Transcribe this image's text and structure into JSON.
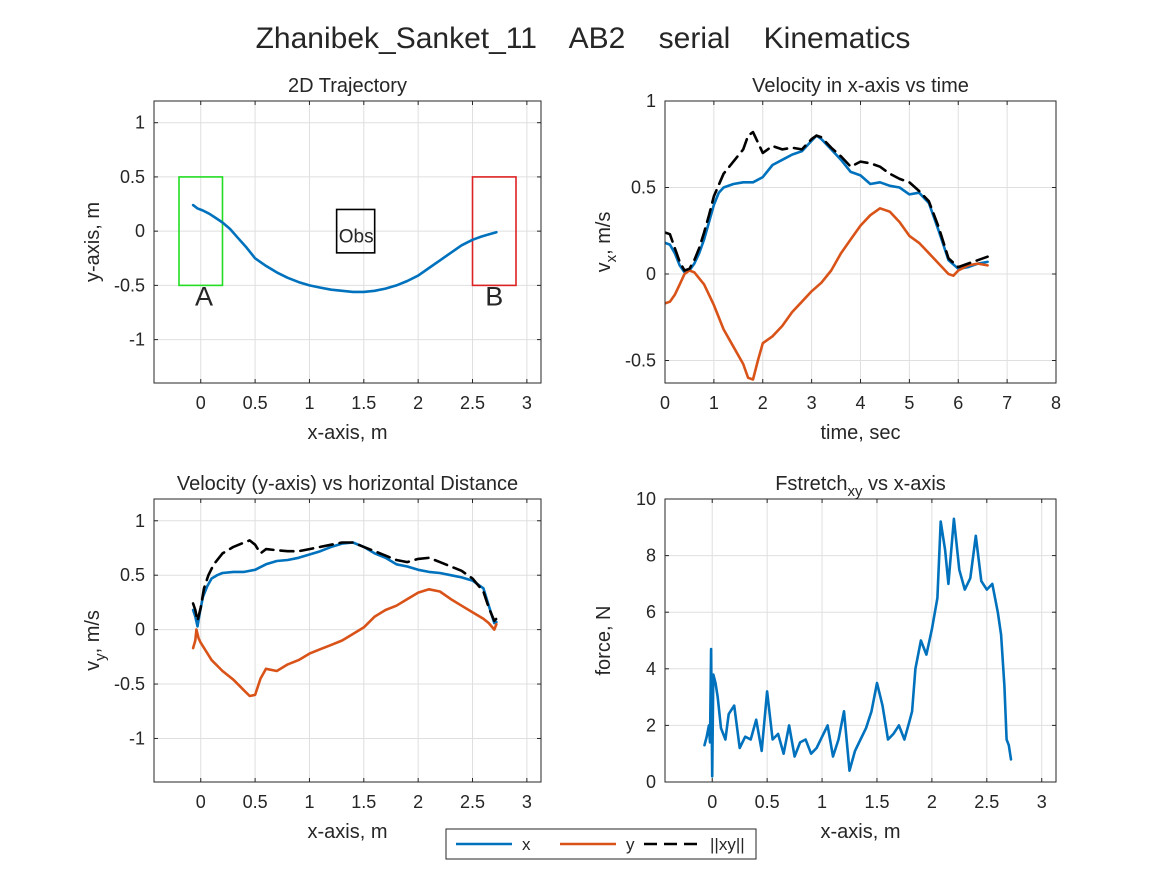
{
  "figure": {
    "title": "Zhanibek_Sanket_11    AB2    serial    Kinematics"
  },
  "colors": {
    "x": "#0072BD",
    "y": "#D95319",
    "xy": "#000000",
    "start_box": "#22dd22",
    "end_box": "#dd2222",
    "obstacle": "#000000"
  },
  "legend": {
    "placement": "bottom-center",
    "items": [
      {
        "label": "x",
        "color": "#0072BD",
        "dash": "solid"
      },
      {
        "label": "y",
        "color": "#D95319",
        "dash": "solid"
      },
      {
        "label": "||xy||",
        "color": "#000000",
        "dash": "dashed"
      }
    ]
  },
  "chart_data": [
    {
      "id": "traj",
      "type": "line",
      "title": "2D Trajectory",
      "xlabel": "x-axis, m",
      "ylabel": "y-axis, m",
      "xlim": [
        -0.43,
        3.13
      ],
      "ylim": [
        -1.4,
        1.2
      ],
      "xticks": [
        0,
        0.5,
        1,
        1.5,
        2,
        2.5,
        3
      ],
      "xtick_labels": [
        "0",
        "0.5",
        "1",
        "1.5",
        "2",
        "2.5",
        "3"
      ],
      "yticks": [
        -1,
        -0.5,
        0,
        0.5,
        1
      ],
      "ytick_labels": [
        "-1",
        "-0.5",
        "0",
        "0.5",
        "1"
      ],
      "grid": true,
      "series": [
        {
          "key": "x",
          "x": [
            -0.07,
            -0.03,
            0.02,
            0.08,
            0.14,
            0.2,
            0.27,
            0.34,
            0.42,
            0.5,
            0.6,
            0.7,
            0.8,
            0.9,
            1.0,
            1.1,
            1.2,
            1.3,
            1.4,
            1.5,
            1.6,
            1.7,
            1.8,
            1.9,
            2.0,
            2.1,
            2.2,
            2.3,
            2.4,
            2.5,
            2.58,
            2.65,
            2.72
          ],
          "y": [
            0.24,
            0.21,
            0.19,
            0.16,
            0.12,
            0.08,
            0.02,
            -0.06,
            -0.15,
            -0.25,
            -0.32,
            -0.38,
            -0.43,
            -0.47,
            -0.5,
            -0.52,
            -0.54,
            -0.55,
            -0.56,
            -0.56,
            -0.55,
            -0.53,
            -0.5,
            -0.46,
            -0.41,
            -0.34,
            -0.27,
            -0.2,
            -0.13,
            -0.08,
            -0.05,
            -0.03,
            -0.01
          ]
        }
      ],
      "rects": [
        {
          "label": "A",
          "x0": -0.2,
          "x1": 0.2,
          "y0": -0.5,
          "y1": 0.5,
          "color": "#22dd22",
          "label_x": 0.03,
          "label_y": -0.62
        },
        {
          "label": "Obs",
          "x0": 1.25,
          "x1": 1.6,
          "y0": -0.2,
          "y1": 0.2,
          "color": "#000000",
          "label_x": 1.43,
          "label_y": -0.06
        },
        {
          "label": "B",
          "x0": 2.5,
          "x1": 2.9,
          "y0": -0.5,
          "y1": 0.5,
          "color": "#dd2222",
          "label_x": 2.7,
          "label_y": -0.62
        }
      ]
    },
    {
      "id": "vx",
      "type": "line",
      "title": "Velocity in x-axis vs time",
      "xlabel": "time, sec",
      "ylabel_main": "v",
      "ylabel_sub": "x",
      "ylabel_rest": ", m/s",
      "xlim": [
        0,
        8
      ],
      "ylim": [
        -0.63,
        1
      ],
      "xticks": [
        0,
        1,
        2,
        3,
        4,
        5,
        6,
        7,
        8
      ],
      "xtick_labels": [
        "0",
        "1",
        "2",
        "3",
        "4",
        "5",
        "6",
        "7",
        "8"
      ],
      "yticks": [
        -0.5,
        0,
        0.5,
        1
      ],
      "ytick_labels": [
        "-0.5",
        "0",
        "0.5",
        "1"
      ],
      "grid": true,
      "series": [
        {
          "key": "x",
          "x": [
            0,
            0.1,
            0.2,
            0.3,
            0.4,
            0.5,
            0.6,
            0.7,
            0.8,
            0.9,
            1.0,
            1.1,
            1.2,
            1.4,
            1.6,
            1.8,
            2.0,
            2.2,
            2.4,
            2.6,
            2.8,
            3.0,
            3.1,
            3.2,
            3.4,
            3.6,
            3.8,
            4.0,
            4.2,
            4.4,
            4.6,
            4.8,
            5.0,
            5.2,
            5.4,
            5.6,
            5.8,
            6.0,
            6.2,
            6.4,
            6.6
          ],
          "y": [
            0.18,
            0.17,
            0.12,
            0.05,
            0.01,
            0.02,
            0.06,
            0.12,
            0.2,
            0.3,
            0.4,
            0.47,
            0.5,
            0.52,
            0.53,
            0.53,
            0.56,
            0.63,
            0.66,
            0.69,
            0.71,
            0.77,
            0.8,
            0.78,
            0.72,
            0.66,
            0.59,
            0.57,
            0.52,
            0.53,
            0.51,
            0.5,
            0.46,
            0.47,
            0.41,
            0.25,
            0.08,
            0.03,
            0.04,
            0.06,
            0.07
          ]
        },
        {
          "key": "y",
          "x": [
            0,
            0.1,
            0.2,
            0.3,
            0.4,
            0.5,
            0.6,
            0.8,
            1.0,
            1.2,
            1.4,
            1.6,
            1.7,
            1.8,
            1.9,
            2.0,
            2.2,
            2.4,
            2.6,
            2.8,
            3.0,
            3.2,
            3.4,
            3.6,
            3.8,
            4.0,
            4.2,
            4.4,
            4.6,
            4.8,
            5.0,
            5.2,
            5.4,
            5.6,
            5.8,
            5.9,
            6.0,
            6.2,
            6.4,
            6.6
          ],
          "y": [
            -0.17,
            -0.16,
            -0.12,
            -0.06,
            0.0,
            0.02,
            0.01,
            -0.06,
            -0.18,
            -0.32,
            -0.42,
            -0.52,
            -0.6,
            -0.61,
            -0.5,
            -0.4,
            -0.36,
            -0.3,
            -0.22,
            -0.16,
            -0.1,
            -0.05,
            0.02,
            0.12,
            0.2,
            0.28,
            0.34,
            0.38,
            0.36,
            0.3,
            0.22,
            0.18,
            0.12,
            0.06,
            0.0,
            -0.01,
            0.02,
            0.05,
            0.06,
            0.05
          ]
        },
        {
          "key": "xy",
          "x": [
            0,
            0.1,
            0.2,
            0.3,
            0.4,
            0.5,
            0.6,
            0.7,
            0.8,
            0.9,
            1.0,
            1.2,
            1.4,
            1.6,
            1.7,
            1.8,
            1.9,
            2.0,
            2.2,
            2.4,
            2.6,
            2.8,
            3.0,
            3.1,
            3.2,
            3.4,
            3.6,
            3.8,
            4.0,
            4.2,
            4.4,
            4.6,
            4.8,
            5.0,
            5.2,
            5.4,
            5.6,
            5.8,
            6.0,
            6.2,
            6.4,
            6.6
          ],
          "y": [
            0.24,
            0.23,
            0.15,
            0.07,
            0.02,
            0.03,
            0.08,
            0.15,
            0.24,
            0.34,
            0.45,
            0.58,
            0.65,
            0.72,
            0.8,
            0.82,
            0.76,
            0.7,
            0.74,
            0.72,
            0.73,
            0.72,
            0.78,
            0.8,
            0.79,
            0.73,
            0.68,
            0.62,
            0.65,
            0.64,
            0.62,
            0.58,
            0.55,
            0.53,
            0.48,
            0.42,
            0.27,
            0.09,
            0.04,
            0.06,
            0.08,
            0.1
          ]
        }
      ]
    },
    {
      "id": "vy",
      "type": "line",
      "title": "Velocity (y-axis) vs horizontal Distance",
      "xlabel": "x-axis, m",
      "ylabel_main": "v",
      "ylabel_sub": "y",
      "ylabel_rest": ", m/s",
      "xlim": [
        -0.43,
        3.13
      ],
      "ylim": [
        -1.4,
        1.2
      ],
      "xticks": [
        0,
        0.5,
        1,
        1.5,
        2,
        2.5,
        3
      ],
      "xtick_labels": [
        "0",
        "0.5",
        "1",
        "1.5",
        "2",
        "2.5",
        "3"
      ],
      "yticks": [
        -1,
        -0.5,
        0,
        0.5,
        1
      ],
      "ytick_labels": [
        "-1",
        "-0.5",
        "0",
        "0.5",
        "1"
      ],
      "grid": true,
      "series": [
        {
          "key": "x",
          "x": [
            -0.07,
            -0.05,
            -0.03,
            -0.01,
            0.02,
            0.06,
            0.1,
            0.15,
            0.2,
            0.3,
            0.4,
            0.5,
            0.6,
            0.7,
            0.8,
            0.9,
            1.0,
            1.1,
            1.2,
            1.3,
            1.4,
            1.5,
            1.6,
            1.7,
            1.8,
            1.9,
            2.0,
            2.1,
            2.2,
            2.3,
            2.4,
            2.5,
            2.6,
            2.65,
            2.7,
            2.72
          ],
          "y": [
            0.18,
            0.12,
            0.03,
            0.15,
            0.3,
            0.4,
            0.47,
            0.5,
            0.52,
            0.53,
            0.53,
            0.55,
            0.6,
            0.63,
            0.64,
            0.66,
            0.69,
            0.72,
            0.76,
            0.79,
            0.8,
            0.76,
            0.7,
            0.66,
            0.6,
            0.58,
            0.55,
            0.53,
            0.52,
            0.5,
            0.48,
            0.45,
            0.38,
            0.22,
            0.06,
            0.07
          ]
        },
        {
          "key": "y",
          "x": [
            -0.07,
            -0.05,
            -0.04,
            -0.02,
            0.0,
            0.05,
            0.1,
            0.2,
            0.3,
            0.4,
            0.45,
            0.5,
            0.55,
            0.6,
            0.7,
            0.8,
            0.9,
            1.0,
            1.1,
            1.2,
            1.3,
            1.4,
            1.5,
            1.6,
            1.7,
            1.8,
            1.9,
            2.0,
            2.1,
            2.2,
            2.3,
            2.4,
            2.5,
            2.6,
            2.65,
            2.7,
            2.72
          ],
          "y": [
            -0.17,
            -0.1,
            0.0,
            -0.08,
            -0.12,
            -0.2,
            -0.28,
            -0.38,
            -0.46,
            -0.56,
            -0.61,
            -0.6,
            -0.45,
            -0.36,
            -0.38,
            -0.32,
            -0.28,
            -0.22,
            -0.18,
            -0.14,
            -0.1,
            -0.04,
            0.02,
            0.12,
            0.18,
            0.22,
            0.28,
            0.34,
            0.37,
            0.35,
            0.28,
            0.22,
            0.16,
            0.1,
            0.06,
            0.0,
            0.05
          ]
        },
        {
          "key": "xy",
          "x": [
            -0.07,
            -0.05,
            -0.03,
            0.0,
            0.03,
            0.07,
            0.12,
            0.2,
            0.3,
            0.4,
            0.45,
            0.5,
            0.55,
            0.6,
            0.7,
            0.8,
            0.9,
            1.0,
            1.1,
            1.2,
            1.3,
            1.4,
            1.5,
            1.6,
            1.7,
            1.8,
            1.9,
            2.0,
            2.1,
            2.2,
            2.3,
            2.4,
            2.5,
            2.6,
            2.65,
            2.7,
            2.72
          ],
          "y": [
            0.24,
            0.18,
            0.08,
            0.2,
            0.38,
            0.5,
            0.6,
            0.7,
            0.76,
            0.8,
            0.82,
            0.78,
            0.7,
            0.74,
            0.73,
            0.72,
            0.72,
            0.74,
            0.76,
            0.78,
            0.8,
            0.8,
            0.76,
            0.72,
            0.68,
            0.64,
            0.62,
            0.65,
            0.66,
            0.62,
            0.58,
            0.54,
            0.47,
            0.35,
            0.2,
            0.08,
            0.1
          ]
        }
      ]
    },
    {
      "id": "force",
      "type": "line",
      "title_main": "Fstretch",
      "title_sub": "xy",
      "title_rest": " vs x-axis",
      "xlabel": "x-axis, m",
      "ylabel": "force, N",
      "xlim": [
        -0.43,
        3.13
      ],
      "ylim": [
        0,
        10
      ],
      "xticks": [
        0,
        0.5,
        1,
        1.5,
        2,
        2.5,
        3
      ],
      "xtick_labels": [
        "0",
        "0.5",
        "1",
        "1.5",
        "2",
        "2.5",
        "3"
      ],
      "yticks": [
        0,
        2,
        4,
        6,
        8,
        10
      ],
      "ytick_labels": [
        "0",
        "2",
        "4",
        "6",
        "8",
        "10"
      ],
      "grid": true,
      "series": [
        {
          "key": "x",
          "x": [
            -0.07,
            -0.05,
            -0.03,
            -0.02,
            -0.01,
            0.0,
            0.01,
            0.03,
            0.05,
            0.08,
            0.12,
            0.15,
            0.2,
            0.25,
            0.3,
            0.35,
            0.4,
            0.45,
            0.5,
            0.55,
            0.6,
            0.65,
            0.7,
            0.75,
            0.8,
            0.85,
            0.9,
            0.95,
            1.0,
            1.05,
            1.1,
            1.15,
            1.2,
            1.25,
            1.3,
            1.35,
            1.4,
            1.45,
            1.5,
            1.55,
            1.6,
            1.65,
            1.7,
            1.75,
            1.8,
            1.82,
            1.85,
            1.9,
            1.95,
            2.0,
            2.05,
            2.08,
            2.12,
            2.15,
            2.2,
            2.25,
            2.3,
            2.35,
            2.4,
            2.45,
            2.5,
            2.55,
            2.6,
            2.63,
            2.66,
            2.68,
            2.7,
            2.72
          ],
          "y": [
            1.3,
            1.6,
            2.0,
            1.4,
            4.7,
            0.2,
            3.8,
            3.5,
            3.0,
            1.9,
            1.5,
            2.4,
            2.7,
            1.2,
            1.6,
            1.5,
            2.2,
            1.1,
            3.2,
            1.5,
            1.7,
            1.0,
            2.0,
            0.9,
            1.4,
            1.5,
            1.0,
            1.2,
            1.6,
            2.0,
            0.9,
            1.5,
            2.5,
            0.4,
            1.1,
            1.5,
            1.9,
            2.5,
            3.5,
            2.7,
            1.5,
            1.7,
            2.0,
            1.5,
            2.2,
            2.5,
            4.0,
            5.0,
            4.5,
            5.4,
            6.5,
            9.2,
            8.2,
            7.0,
            9.3,
            7.5,
            6.8,
            7.2,
            8.7,
            7.1,
            6.8,
            7.0,
            6.0,
            5.2,
            3.4,
            1.5,
            1.3,
            0.8
          ]
        }
      ]
    }
  ]
}
